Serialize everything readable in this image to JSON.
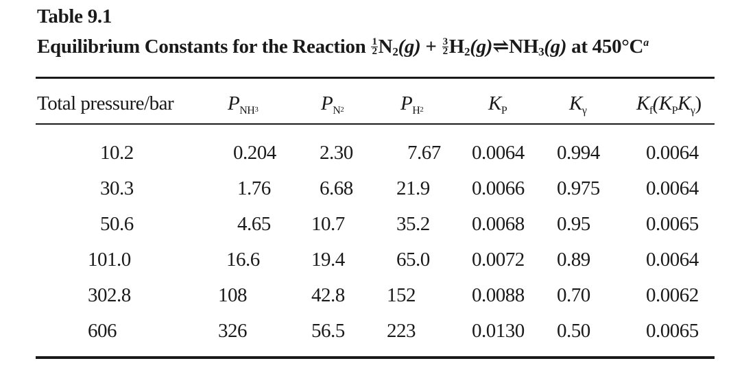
{
  "table": {
    "label": "Table 9.1",
    "title": {
      "prefix": "Equilibrium Constants for the Reaction",
      "coef1": {
        "num": "1",
        "den": "2"
      },
      "species1": "N",
      "species1_sub": "2",
      "phase1": "(g)",
      "plus": "+",
      "coef2": {
        "num": "3",
        "den": "2"
      },
      "species2": "H",
      "species2_sub": "2",
      "phase2": "(g)",
      "arrow": "⇌",
      "product": "NH",
      "product_sub": "3",
      "phase3": "(g)",
      "suffix": "at 450°C",
      "footnote_mark": "a"
    },
    "headers": {
      "pressure": "Total pressure/bar",
      "p_nh3": {
        "main": "P",
        "sub": "NH",
        "sub2": "3"
      },
      "p_n2": {
        "main": "P",
        "sub": "N",
        "sub2": "2"
      },
      "p_h2": {
        "main": "P",
        "sub": "H",
        "sub2": "2"
      },
      "kp": {
        "main": "K",
        "sub": "P"
      },
      "kgamma": {
        "main": "K",
        "sub": "γ"
      },
      "kf": {
        "main": "K",
        "sub": "f",
        "paren": "(K",
        "paren_sub1": "P",
        "paren_mid": "K",
        "paren_sub2": "γ",
        "paren_close": ")"
      }
    },
    "rows": [
      {
        "pressure": "10.2",
        "p_nh3": "0.204",
        "p_n2": "2.30",
        "p_h2": "7.67",
        "kp": "0.0064",
        "kgamma": "0.994",
        "kf": "0.0064"
      },
      {
        "pressure": "30.3",
        "p_nh3": "1.76",
        "p_n2": "6.68",
        "p_h2": "21.9",
        "kp": "0.0066",
        "kgamma": "0.975",
        "kf": "0.0064"
      },
      {
        "pressure": "50.6",
        "p_nh3": "4.65",
        "p_n2": "10.7",
        "p_h2": "35.2",
        "kp": "0.0068",
        "kgamma": "0.95",
        "kf": "0.0065"
      },
      {
        "pressure": "101.0",
        "p_nh3": "16.6",
        "p_n2": "19.4",
        "p_h2": "65.0",
        "kp": "0.0072",
        "kgamma": "0.89",
        "kf": "0.0064"
      },
      {
        "pressure": "302.8",
        "p_nh3": "108",
        "p_n2": "42.8",
        "p_h2": "152",
        "kp": "0.0088",
        "kgamma": "0.70",
        "kf": "0.0062"
      },
      {
        "pressure": "606",
        "p_nh3": "326",
        "p_n2": "56.5",
        "p_h2": "223",
        "kp": "0.0130",
        "kgamma": "0.50",
        "kf": "0.0065"
      }
    ]
  }
}
